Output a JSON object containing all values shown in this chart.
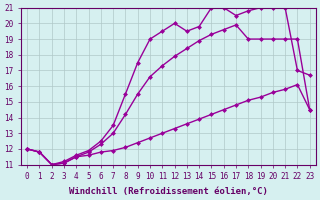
{
  "xlabel": "Windchill (Refroidissement éolien,°C)",
  "bg_color": "#d6f0f0",
  "grid_color": "#b0c8c8",
  "line_color": "#990099",
  "xlim_min": -0.5,
  "xlim_max": 23.5,
  "ylim_min": 11,
  "ylim_max": 21,
  "xticks": [
    0,
    1,
    2,
    3,
    4,
    5,
    6,
    7,
    8,
    9,
    10,
    11,
    12,
    13,
    14,
    15,
    16,
    17,
    18,
    19,
    20,
    21,
    22,
    23
  ],
  "yticks": [
    11,
    12,
    13,
    14,
    15,
    16,
    17,
    18,
    19,
    20,
    21
  ],
  "line1_x": [
    0,
    1,
    2,
    3,
    4,
    5,
    6,
    7,
    8,
    9,
    10,
    11,
    12,
    13,
    14,
    15,
    16,
    17,
    18,
    19,
    20,
    21,
    22,
    23
  ],
  "line1_y": [
    12.0,
    11.8,
    11.0,
    11.1,
    11.5,
    11.6,
    11.8,
    11.9,
    12.1,
    12.4,
    12.7,
    13.0,
    13.3,
    13.6,
    13.9,
    14.2,
    14.5,
    14.8,
    15.1,
    15.3,
    15.6,
    15.8,
    16.1,
    14.5
  ],
  "line2_x": [
    0,
    1,
    2,
    3,
    4,
    5,
    6,
    7,
    8,
    9,
    10,
    11,
    12,
    13,
    14,
    15,
    16,
    17,
    18,
    19,
    20,
    21,
    22,
    23
  ],
  "line2_y": [
    12.0,
    11.8,
    11.0,
    11.1,
    11.5,
    11.8,
    12.3,
    13.0,
    14.2,
    15.5,
    16.6,
    17.3,
    17.9,
    18.4,
    18.9,
    19.3,
    19.6,
    19.9,
    19.0,
    19.0,
    19.0,
    19.0,
    19.0,
    14.5
  ],
  "line3_x": [
    0,
    1,
    2,
    3,
    4,
    5,
    6,
    7,
    8,
    9,
    10,
    11,
    12,
    13,
    14,
    15,
    16,
    17,
    18,
    19,
    20,
    21,
    22,
    23
  ],
  "line3_y": [
    12.0,
    11.8,
    11.0,
    11.2,
    11.6,
    11.9,
    12.5,
    13.5,
    15.5,
    17.5,
    19.0,
    19.5,
    20.0,
    19.5,
    19.8,
    21.0,
    21.0,
    20.5,
    20.8,
    21.0,
    21.0,
    21.0,
    17.0,
    16.7
  ],
  "marker": "D",
  "markersize": 2.5,
  "linewidth": 1.0,
  "font_color": "#660066",
  "tick_fontsize": 5.5,
  "label_fontsize": 6.5
}
